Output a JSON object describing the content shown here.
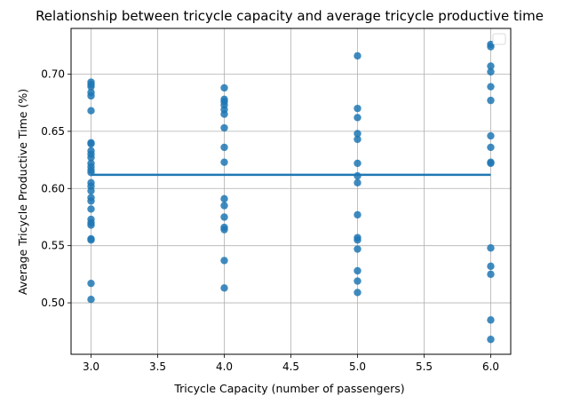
{
  "chart_data": {
    "type": "scatter",
    "title": "Relationship between tricycle capacity and average tricycle productive time",
    "xlabel": "Tricycle Capacity (number of passengers)",
    "ylabel": "Average Tricycle Productive Time (%)",
    "xlim": [
      2.85,
      6.15
    ],
    "ylim": [
      0.455,
      0.74
    ],
    "xticks": [
      3.0,
      3.5,
      4.0,
      4.5,
      5.0,
      5.5,
      6.0
    ],
    "xtick_labels": [
      "3.0",
      "3.5",
      "4.0",
      "4.5",
      "5.0",
      "5.5",
      "6.0"
    ],
    "yticks": [
      0.5,
      0.55,
      0.6,
      0.65,
      0.7
    ],
    "ytick_labels": [
      "0.50",
      "0.55",
      "0.60",
      "0.65",
      "0.70"
    ],
    "grid": true,
    "legend": "top-right (empty)",
    "colors": {
      "points": "#1f77b4",
      "line": "#1f77b4",
      "grid": "#b0b0b0"
    },
    "series": [
      {
        "kind": "scatter",
        "points": [
          [
            3,
            0.693
          ],
          [
            3,
            0.691
          ],
          [
            3,
            0.689
          ],
          [
            3,
            0.684
          ],
          [
            3,
            0.681
          ],
          [
            3,
            0.668
          ],
          [
            3,
            0.64
          ],
          [
            3,
            0.639
          ],
          [
            3,
            0.633
          ],
          [
            3,
            0.63
          ],
          [
            3,
            0.627
          ],
          [
            3,
            0.622
          ],
          [
            3,
            0.619
          ],
          [
            3,
            0.616
          ],
          [
            3,
            0.614
          ],
          [
            3,
            0.605
          ],
          [
            3,
            0.602
          ],
          [
            3,
            0.598
          ],
          [
            3,
            0.592
          ],
          [
            3,
            0.589
          ],
          [
            3,
            0.582
          ],
          [
            3,
            0.573
          ],
          [
            3,
            0.57
          ],
          [
            3,
            0.568
          ],
          [
            3,
            0.556
          ],
          [
            3,
            0.555
          ],
          [
            3,
            0.517
          ],
          [
            3,
            0.503
          ],
          [
            4,
            0.688
          ],
          [
            4,
            0.678
          ],
          [
            4,
            0.676
          ],
          [
            4,
            0.673
          ],
          [
            4,
            0.669
          ],
          [
            4,
            0.665
          ],
          [
            4,
            0.653
          ],
          [
            4,
            0.636
          ],
          [
            4,
            0.623
          ],
          [
            4,
            0.591
          ],
          [
            4,
            0.585
          ],
          [
            4,
            0.575
          ],
          [
            4,
            0.566
          ],
          [
            4,
            0.564
          ],
          [
            4,
            0.537
          ],
          [
            4,
            0.513
          ],
          [
            5,
            0.716
          ],
          [
            5,
            0.67
          ],
          [
            5,
            0.662
          ],
          [
            5,
            0.648
          ],
          [
            5,
            0.643
          ],
          [
            5,
            0.622
          ],
          [
            5,
            0.611
          ],
          [
            5,
            0.605
          ],
          [
            5,
            0.577
          ],
          [
            5,
            0.557
          ],
          [
            5,
            0.555
          ],
          [
            5,
            0.547
          ],
          [
            5,
            0.528
          ],
          [
            5,
            0.519
          ],
          [
            5,
            0.509
          ],
          [
            6,
            0.726
          ],
          [
            6,
            0.724
          ],
          [
            6,
            0.707
          ],
          [
            6,
            0.702
          ],
          [
            6,
            0.689
          ],
          [
            6,
            0.677
          ],
          [
            6,
            0.646
          ],
          [
            6,
            0.636
          ],
          [
            6,
            0.623
          ],
          [
            6,
            0.622
          ],
          [
            6,
            0.548
          ],
          [
            6,
            0.532
          ],
          [
            6,
            0.525
          ],
          [
            6,
            0.485
          ],
          [
            6,
            0.468
          ]
        ]
      },
      {
        "kind": "line",
        "x": [
          3,
          6
        ],
        "y": [
          0.612,
          0.612
        ]
      }
    ]
  }
}
